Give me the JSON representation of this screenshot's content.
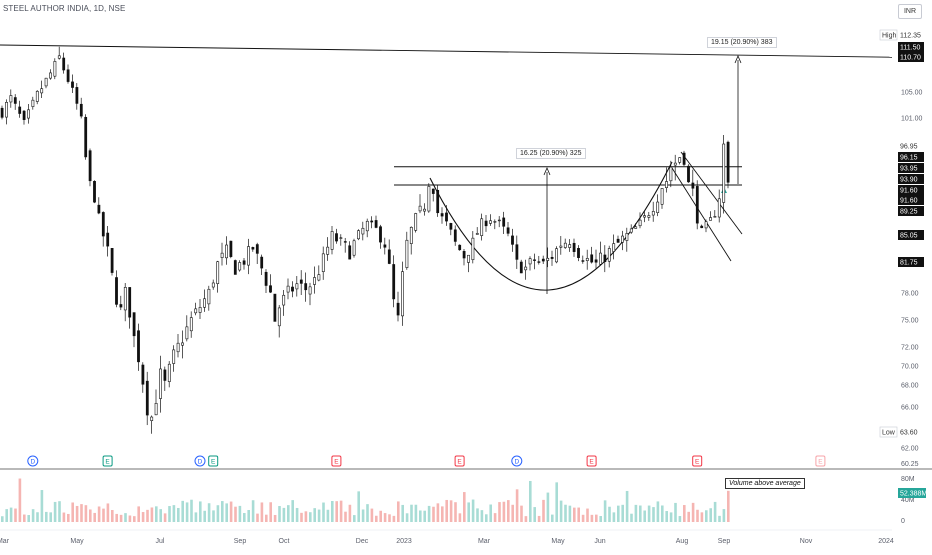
{
  "header": {
    "symbol_title": "STEEL AUTHOR INDIA, 1D, NSE",
    "currency": "INR"
  },
  "annotations": {
    "measure_left": "16.25 (20.90%) 325",
    "measure_right": "19.15 (20.90%) 383",
    "volume_note": "Volume above average"
  },
  "chart_data": {
    "type": "candlestick",
    "title": "STEEL AUTHOR INDIA, 1D, NSE",
    "x_tick_labels": [
      "Mar",
      "May",
      "Jul",
      "Sep",
      "Oct",
      "Dec",
      "2023",
      "Mar",
      "May",
      "Jun",
      "Aug",
      "Sep",
      "Nov",
      "2024"
    ],
    "y_ticks": [
      62.0,
      66.0,
      68.0,
      70.0,
      72.0,
      75.0,
      78.0,
      101.0,
      105.0
    ],
    "ylim": [
      60.25,
      113.5
    ],
    "high": {
      "label": "High",
      "value": "112.35"
    },
    "low": {
      "label": "Low",
      "value": "63.60"
    },
    "price_labels": [
      {
        "value": "111.50",
        "style": "black"
      },
      {
        "value": "110.70",
        "style": "black"
      },
      {
        "value": "96.95",
        "style": "plain"
      },
      {
        "value": "96.15",
        "style": "black"
      },
      {
        "value": "93.95",
        "style": "black"
      },
      {
        "value": "93.90",
        "style": "black"
      },
      {
        "value": "91.60",
        "style": "black"
      },
      {
        "value": "91.60",
        "style": "black"
      },
      {
        "value": "89.25",
        "style": "black"
      },
      {
        "value": "85.05",
        "style": "black"
      },
      {
        "value": "81.75",
        "style": "black"
      }
    ],
    "horizontal_lines": [
      111.0,
      96.0,
      93.9
    ],
    "price_path_anchors": [
      {
        "x": 0,
        "y": 102
      },
      {
        "x": 2,
        "y": 104
      },
      {
        "x": 5,
        "y": 100
      },
      {
        "x": 8,
        "y": 104.5
      },
      {
        "x": 11,
        "y": 108
      },
      {
        "x": 13,
        "y": 110.5
      },
      {
        "x": 15,
        "y": 107
      },
      {
        "x": 17,
        "y": 103
      },
      {
        "x": 18,
        "y": 100.5
      },
      {
        "x": 19,
        "y": 96
      },
      {
        "x": 20,
        "y": 93
      },
      {
        "x": 21,
        "y": 91
      },
      {
        "x": 22,
        "y": 88
      },
      {
        "x": 23,
        "y": 85
      },
      {
        "x": 24,
        "y": 83
      },
      {
        "x": 25,
        "y": 80
      },
      {
        "x": 26,
        "y": 77.5
      },
      {
        "x": 27,
        "y": 76
      },
      {
        "x": 28,
        "y": 78
      },
      {
        "x": 29,
        "y": 76
      },
      {
        "x": 30,
        "y": 73
      },
      {
        "x": 31,
        "y": 71
      },
      {
        "x": 33,
        "y": 66
      },
      {
        "x": 34,
        "y": 65
      },
      {
        "x": 35,
        "y": 67
      },
      {
        "x": 36,
        "y": 69
      },
      {
        "x": 37,
        "y": 68
      },
      {
        "x": 39,
        "y": 71
      },
      {
        "x": 41,
        "y": 73
      },
      {
        "x": 43,
        "y": 75
      },
      {
        "x": 45,
        "y": 76.5
      },
      {
        "x": 47,
        "y": 78
      },
      {
        "x": 49,
        "y": 81.5
      },
      {
        "x": 51,
        "y": 83
      },
      {
        "x": 53,
        "y": 81
      },
      {
        "x": 55,
        "y": 82
      },
      {
        "x": 57,
        "y": 83.5
      },
      {
        "x": 59,
        "y": 81
      },
      {
        "x": 61,
        "y": 78
      },
      {
        "x": 62,
        "y": 75
      },
      {
        "x": 63,
        "y": 76.5
      },
      {
        "x": 65,
        "y": 78
      },
      {
        "x": 67,
        "y": 79
      },
      {
        "x": 69,
        "y": 78.5
      },
      {
        "x": 71,
        "y": 79.5
      },
      {
        "x": 73,
        "y": 82
      },
      {
        "x": 75,
        "y": 85
      },
      {
        "x": 77,
        "y": 84
      },
      {
        "x": 79,
        "y": 83
      },
      {
        "x": 81,
        "y": 85
      },
      {
        "x": 83,
        "y": 87
      },
      {
        "x": 85,
        "y": 86
      },
      {
        "x": 87,
        "y": 84
      },
      {
        "x": 88,
        "y": 81
      },
      {
        "x": 89,
        "y": 77
      },
      {
        "x": 90,
        "y": 75
      },
      {
        "x": 91,
        "y": 80
      },
      {
        "x": 92,
        "y": 84
      },
      {
        "x": 94,
        "y": 88
      },
      {
        "x": 96,
        "y": 90
      },
      {
        "x": 97,
        "y": 93
      },
      {
        "x": 98,
        "y": 92
      },
      {
        "x": 99,
        "y": 89
      },
      {
        "x": 101,
        "y": 87
      },
      {
        "x": 103,
        "y": 84
      },
      {
        "x": 105,
        "y": 82.5
      },
      {
        "x": 107,
        "y": 84
      },
      {
        "x": 109,
        "y": 87
      },
      {
        "x": 111,
        "y": 88
      },
      {
        "x": 113,
        "y": 87
      },
      {
        "x": 115,
        "y": 85
      },
      {
        "x": 117,
        "y": 81.5
      },
      {
        "x": 119,
        "y": 81
      },
      {
        "x": 121,
        "y": 82
      },
      {
        "x": 123,
        "y": 81.5
      },
      {
        "x": 125,
        "y": 82.5
      },
      {
        "x": 127,
        "y": 84
      },
      {
        "x": 129,
        "y": 84.5
      },
      {
        "x": 131,
        "y": 83
      },
      {
        "x": 133,
        "y": 82
      },
      {
        "x": 135,
        "y": 81.5
      },
      {
        "x": 137,
        "y": 82.5
      },
      {
        "x": 139,
        "y": 83.5
      },
      {
        "x": 141,
        "y": 84.5
      },
      {
        "x": 143,
        "y": 85.5
      },
      {
        "x": 145,
        "y": 87
      },
      {
        "x": 147,
        "y": 89
      },
      {
        "x": 149,
        "y": 91
      },
      {
        "x": 151,
        "y": 93.5
      },
      {
        "x": 153,
        "y": 95
      },
      {
        "x": 154,
        "y": 96.2
      },
      {
        "x": 155,
        "y": 95.5
      },
      {
        "x": 156,
        "y": 93
      },
      {
        "x": 157,
        "y": 91.5
      },
      {
        "x": 158,
        "y": 88
      },
      {
        "x": 159,
        "y": 85.5
      },
      {
        "x": 160,
        "y": 86.5
      },
      {
        "x": 161,
        "y": 87.5
      },
      {
        "x": 162,
        "y": 89
      },
      {
        "x": 163,
        "y": 91
      },
      {
        "x": 164,
        "y": 97
      },
      {
        "x": 165,
        "y": 93
      }
    ],
    "volume": {
      "max_label": "80M",
      "mid_label": "40M",
      "zero_label": "0",
      "last_value": "52.388M",
      "last_ratio": 0.65
    },
    "event_markers": [
      {
        "x": 7,
        "kind": "D"
      },
      {
        "x": 24,
        "kind": "E"
      },
      {
        "x": 45,
        "kind": "D"
      },
      {
        "x": 48,
        "kind": "E"
      },
      {
        "x": 76,
        "kind": "E"
      },
      {
        "x": 104,
        "kind": "E"
      },
      {
        "x": 117,
        "kind": "D"
      },
      {
        "x": 134,
        "kind": "E"
      },
      {
        "x": 158,
        "kind": "E"
      },
      {
        "x": 186,
        "kind": "E"
      }
    ],
    "legend": "none",
    "grid": false
  },
  "colors": {
    "up": "#26a69a",
    "down": "#ef5350",
    "vol_up": "#a8dcd5",
    "vol_down": "#f5b5b2",
    "line": "#111111",
    "axis_text": "#5b5f6b",
    "event_d": "#2962ff",
    "event_e_up": "#089981",
    "event_e_down": "#f23645",
    "event_e_future": "#f7a3a8"
  }
}
